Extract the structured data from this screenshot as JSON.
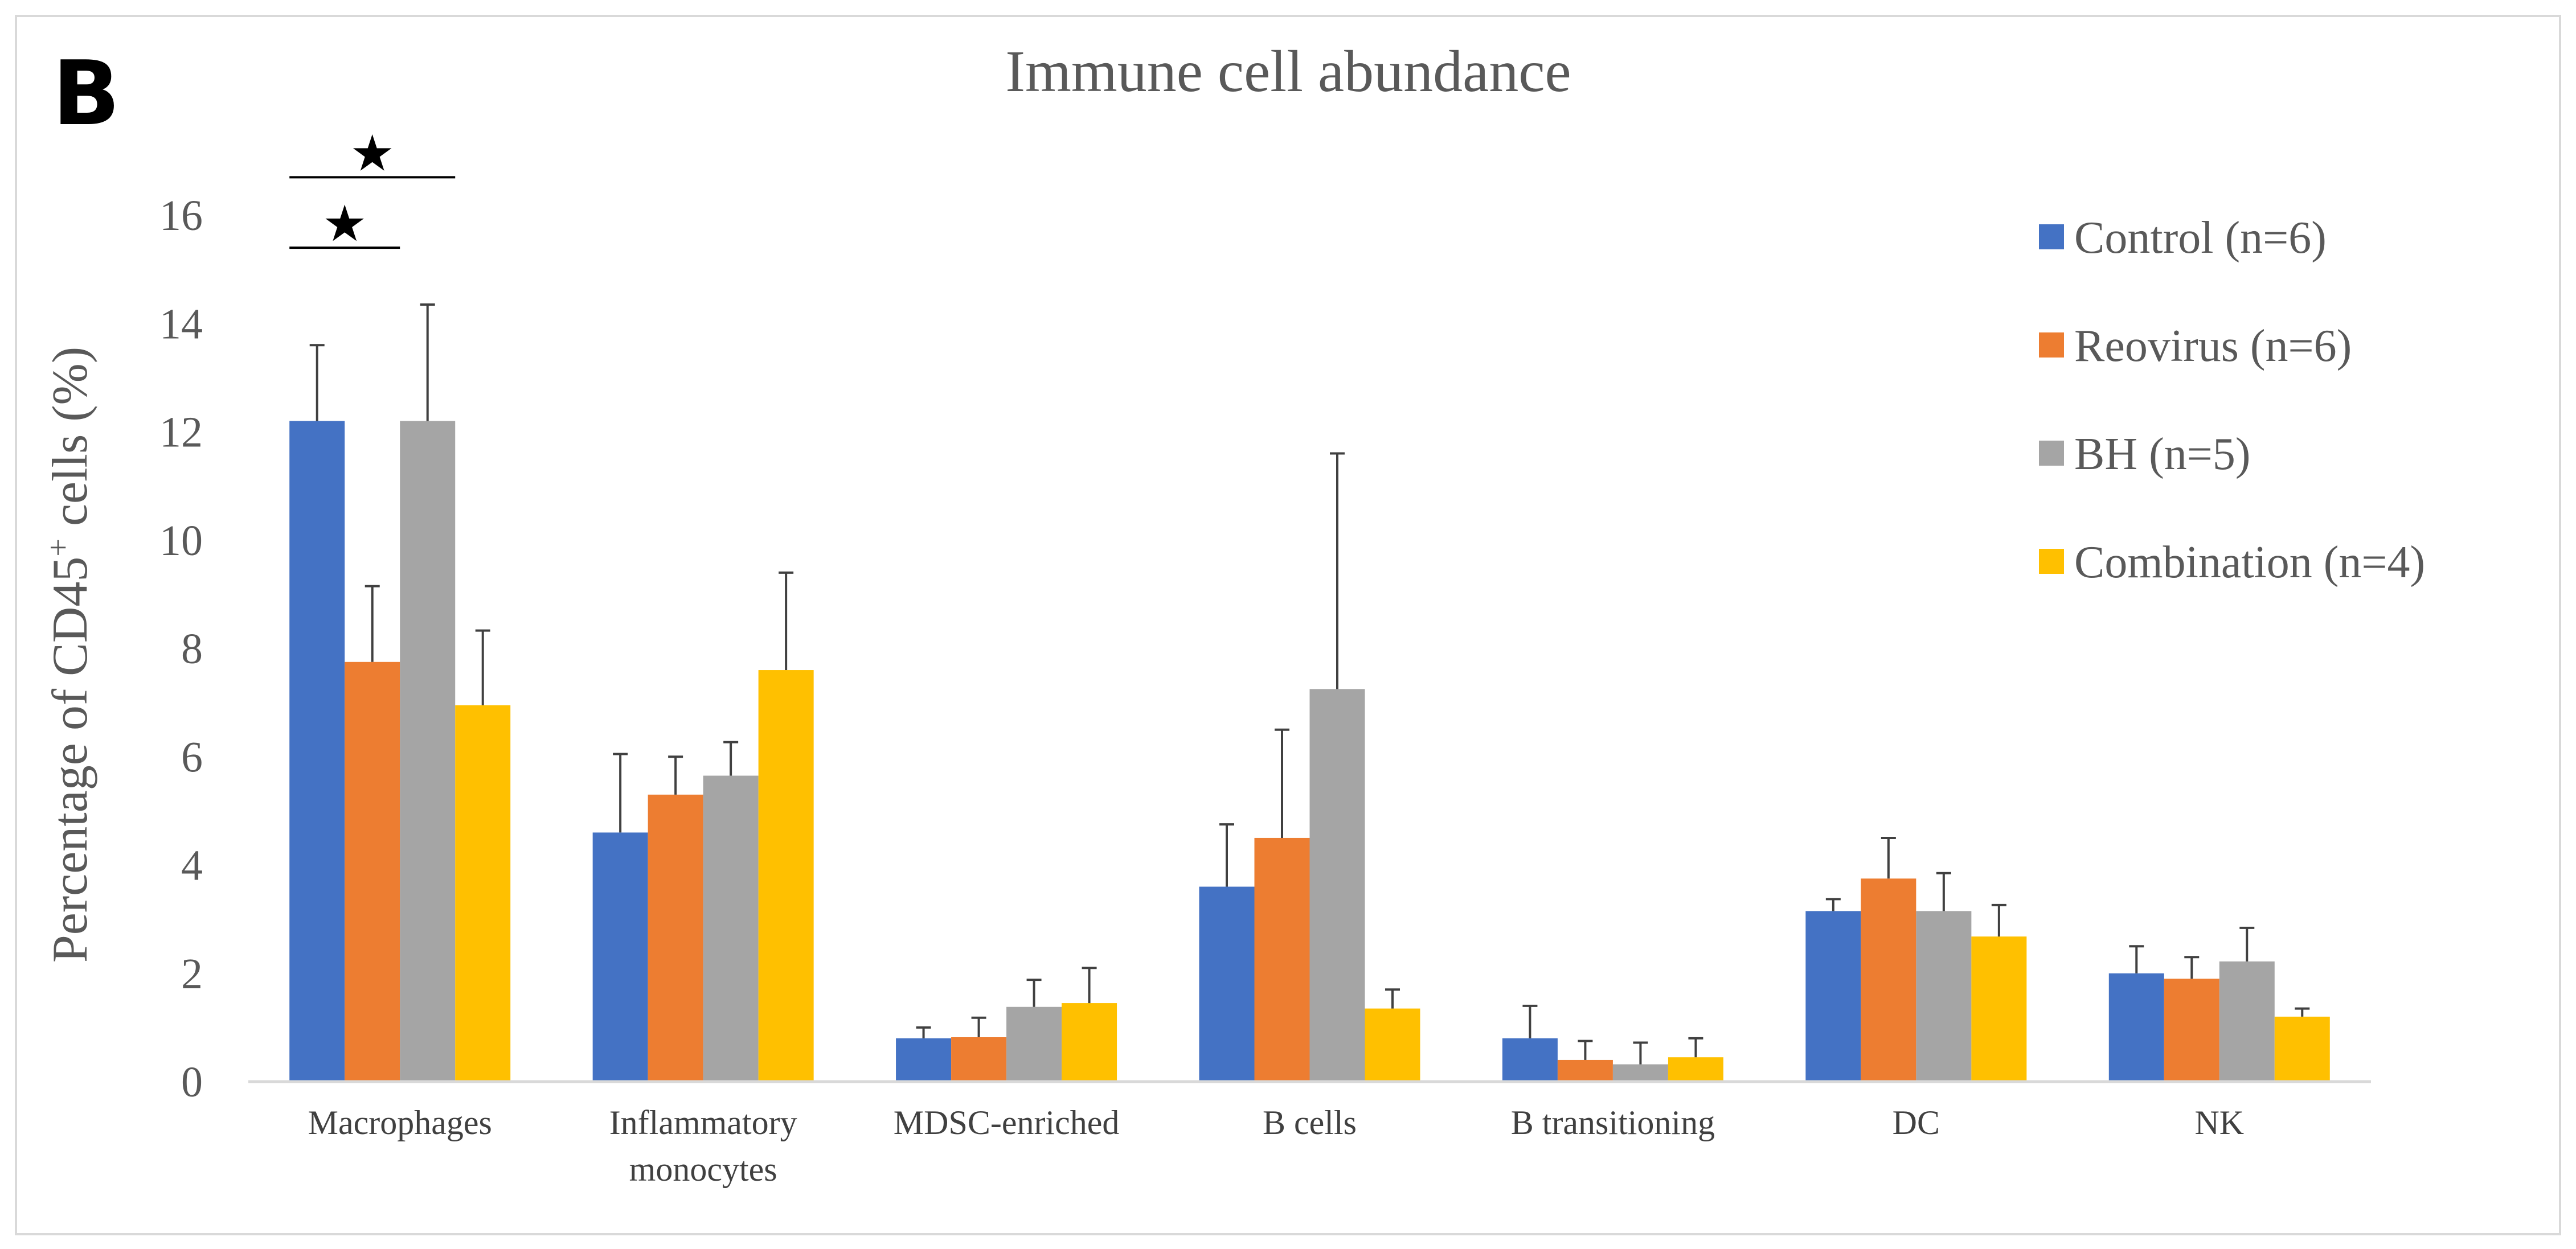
{
  "panel_label": "B",
  "chart_data": {
    "type": "bar",
    "title": "Immune cell abundance",
    "xlabel": "",
    "ylabel_main": "Percentage of CD45",
    "ylabel_sup": "+",
    "ylabel_tail": " cells (%)",
    "ylim": [
      0,
      16
    ],
    "yticks": [
      0,
      2,
      4,
      6,
      8,
      10,
      12,
      14,
      16
    ],
    "grid": false,
    "legend_position": "top-right",
    "categories": [
      [
        "Macrophages"
      ],
      [
        "Inflammatory",
        "monocytes"
      ],
      [
        "MDSC-enriched"
      ],
      [
        "B cells"
      ],
      [
        "B transitioning"
      ],
      [
        "DC"
      ],
      [
        "NK"
      ]
    ],
    "series": [
      {
        "name": "Control (n=6)",
        "color": "#4472C4",
        "values": [
          12.2,
          4.6,
          0.8,
          3.6,
          0.8,
          3.15,
          2.0
        ],
        "errors": [
          1.4,
          1.45,
          0.2,
          1.15,
          0.6,
          0.22,
          0.5
        ]
      },
      {
        "name": "Reovirus (n=6)",
        "color": "#ED7D31",
        "values": [
          7.75,
          5.3,
          0.82,
          4.5,
          0.4,
          3.75,
          1.9
        ],
        "errors": [
          1.4,
          0.7,
          0.36,
          2.0,
          0.35,
          0.75,
          0.4
        ]
      },
      {
        "name": "BH (n=5)",
        "color": "#A5A5A5",
        "values": [
          12.2,
          5.65,
          1.38,
          7.25,
          0.32,
          3.15,
          2.22
        ],
        "errors": [
          2.15,
          0.62,
          0.5,
          4.35,
          0.4,
          0.7,
          0.62
        ]
      },
      {
        "name": "Combination (n=4)",
        "color": "#FFC000",
        "values": [
          6.95,
          7.6,
          1.45,
          1.35,
          0.45,
          2.68,
          1.2
        ],
        "errors": [
          1.38,
          1.8,
          0.65,
          0.35,
          0.35,
          0.58,
          0.15
        ]
      }
    ],
    "annotations": [
      {
        "symbol": "★",
        "category": 0,
        "from_series": 0,
        "to_series": 1,
        "y": 15.4
      },
      {
        "symbol": "★",
        "category": 0,
        "from_series": 0,
        "to_series": 2,
        "y": 16.7
      }
    ]
  }
}
